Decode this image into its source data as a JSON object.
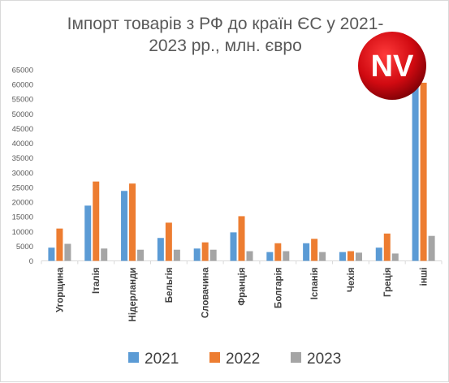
{
  "chart_data": {
    "type": "bar",
    "title_line1": "Імпорт товарів з РФ до країн ЄС у 2021-",
    "title_line2": "2023 рр., млн. євро",
    "categories": [
      "Угорщина",
      "Італія",
      "Нідерланди",
      "Бельгія",
      "Словачина",
      "Франція",
      "Болгарія",
      "Іспанія",
      "Чехія",
      "Греція",
      "інші"
    ],
    "series": [
      {
        "name": "2021",
        "color": "#5b9bd5",
        "values": [
          4500,
          18800,
          23800,
          7800,
          4200,
          9700,
          3000,
          6000,
          3000,
          4500,
          61000
        ]
      },
      {
        "name": "2022",
        "color": "#ed7d31",
        "values": [
          11000,
          27000,
          26300,
          13000,
          6300,
          15200,
          6000,
          7500,
          3300,
          9300,
          60600
        ]
      },
      {
        "name": "2023",
        "color": "#a5a5a5",
        "values": [
          5800,
          4200,
          3800,
          3800,
          3800,
          3300,
          3300,
          3000,
          2800,
          2500,
          8500
        ]
      }
    ],
    "yticks": [
      "0",
      "5000",
      "10000",
      "15000",
      "20000",
      "25000",
      "30000",
      "35000",
      "40000",
      "45000",
      "50000",
      "55000",
      "60000",
      "65000"
    ],
    "ylim": [
      0,
      65000
    ],
    "grid": false,
    "legend": "bottom"
  },
  "logo": {
    "text": "NV",
    "color": "#d10a11"
  }
}
